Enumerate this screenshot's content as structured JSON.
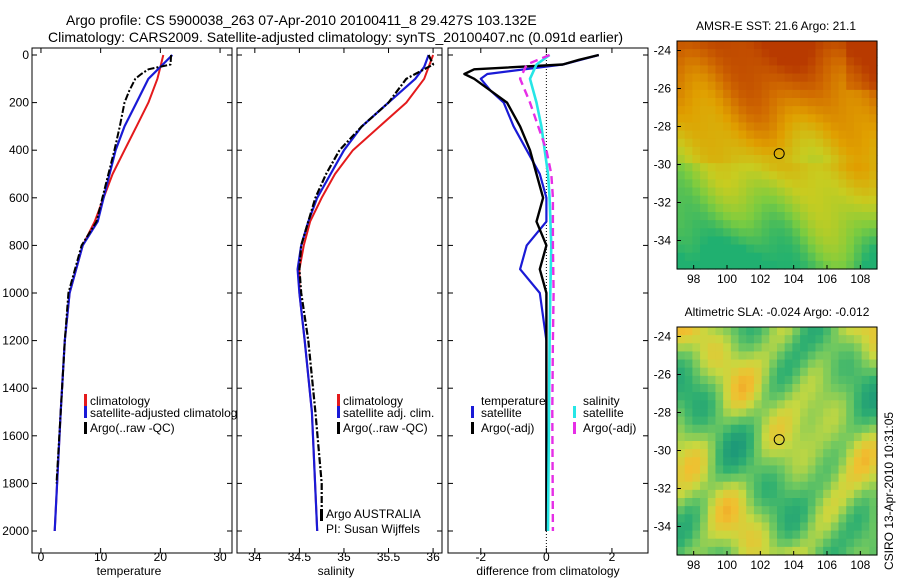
{
  "header": {
    "line1": "Argo profile: CS 5900038_263 07-Apr-2010 20100411_8 29.427S 103.132E",
    "line2": "Climatology: CARS2009. Satellite-adjusted climatology: synTS_20100407.nc (0.091d earlier)"
  },
  "colors": {
    "climatology": "#e41a1c",
    "satellite": "#1a1ad6",
    "argo": "#000000",
    "sal_satellite": "#26e6e6",
    "sal_argo": "#e62ee6"
  },
  "chart_data": [
    {
      "id": "temperature",
      "type": "line",
      "xlabel": "temperature",
      "xlim": [
        -1.5,
        32
      ],
      "xticks": [
        0,
        10,
        20,
        30
      ],
      "ylim": [
        0,
        2050
      ],
      "yticks": [
        0,
        200,
        400,
        600,
        800,
        1000,
        1200,
        1400,
        1600,
        1800,
        2000
      ],
      "y_reversed": true,
      "legend": [
        "climatology",
        "satellite-adjusted climatolog",
        "Argo(..raw -QC)"
      ],
      "series": [
        {
          "name": "climatology",
          "depth": [
            0,
            50,
            100,
            200,
            300,
            400,
            500,
            600,
            700,
            800,
            1000,
            1200,
            1500,
            2000
          ],
          "values": [
            20.5,
            20.0,
            19.5,
            18.0,
            16.0,
            14.0,
            12.0,
            10.5,
            9.0,
            7.0,
            4.8,
            4.0,
            3.3,
            2.3
          ]
        },
        {
          "name": "satellite-adjusted climatolog",
          "depth": [
            0,
            50,
            100,
            200,
            300,
            400,
            500,
            600,
            700,
            800,
            1000,
            1200,
            1500,
            2000
          ],
          "values": [
            22.0,
            20.0,
            18.0,
            16.0,
            14.0,
            12.5,
            11.5,
            10.5,
            9.5,
            7.0,
            4.8,
            4.0,
            3.3,
            2.3
          ]
        },
        {
          "name": "Argo(..raw -QC)",
          "depth": [
            0,
            40,
            60,
            80,
            100,
            150,
            200,
            300,
            400,
            500,
            600,
            700,
            800,
            1000,
            1200,
            1500,
            1800
          ],
          "values": [
            21.8,
            21.7,
            18.0,
            16.8,
            15.8,
            14.8,
            14.0,
            13.2,
            12.3,
            11.3,
            10.3,
            9.3,
            6.8,
            4.6,
            4.0,
            3.3,
            2.6
          ]
        }
      ]
    },
    {
      "id": "salinity",
      "type": "line",
      "xlabel": "salinity",
      "xlim": [
        33.8,
        36.1
      ],
      "xticks": [
        34,
        34.5,
        35,
        35.5,
        36
      ],
      "xtick_labels": [
        "34",
        "34.5",
        "35",
        "35.5",
        "36"
      ],
      "ylim": [
        0,
        2050
      ],
      "y_reversed": true,
      "legend": [
        "climatology",
        "satellite adj. clim.",
        "Argo(..raw -QC)"
      ],
      "note": [
        "Argo AUSTRALIA",
        "PI: Susan Wijffels"
      ],
      "series": [
        {
          "name": "climatology",
          "depth": [
            0,
            100,
            200,
            300,
            400,
            500,
            600,
            700,
            800,
            900,
            1000,
            1200,
            1500,
            2000
          ],
          "values": [
            36.0,
            35.9,
            35.7,
            35.4,
            35.1,
            34.9,
            34.75,
            34.62,
            34.55,
            34.5,
            34.5,
            34.56,
            34.64,
            34.7
          ]
        },
        {
          "name": "satellite adj. clim.",
          "depth": [
            0,
            50,
            100,
            200,
            300,
            400,
            500,
            600,
            700,
            800,
            900,
            1000,
            1200,
            1500,
            2000
          ],
          "values": [
            35.95,
            35.9,
            35.8,
            35.5,
            35.2,
            35.0,
            34.85,
            34.7,
            34.6,
            34.52,
            34.48,
            34.5,
            34.56,
            34.64,
            34.7
          ]
        },
        {
          "name": "Argo(..raw -QC)",
          "depth": [
            0,
            40,
            80,
            100,
            200,
            300,
            400,
            500,
            600,
            700,
            800,
            900,
            1000,
            1200,
            1500,
            1800,
            1950
          ],
          "values": [
            35.95,
            36.0,
            35.8,
            35.7,
            35.5,
            35.2,
            34.95,
            34.8,
            34.68,
            34.6,
            34.52,
            34.5,
            34.52,
            34.6,
            34.68,
            34.75,
            34.75
          ]
        }
      ]
    },
    {
      "id": "difference",
      "type": "line",
      "xlabel": "difference from climatology",
      "xlim": [
        -3,
        3.1
      ],
      "xticks": [
        -2,
        0,
        2
      ],
      "xtick_labels": [
        "-2",
        "0",
        "2"
      ],
      "ylim": [
        0,
        2050
      ],
      "y_reversed": true,
      "legend_temperature": [
        "temperature",
        "satellite",
        "Argo(-adj)"
      ],
      "legend_salinity": [
        "salinity",
        "satellite",
        "Argo(-adj)"
      ],
      "series": [
        {
          "name": "temperature satellite",
          "depth": [
            0,
            40,
            80,
            100,
            150,
            200,
            300,
            400,
            500,
            600,
            700,
            800,
            900,
            1000,
            1200,
            1500,
            2000
          ],
          "values": [
            1.6,
            0.5,
            -1.8,
            -2.0,
            -1.7,
            -1.3,
            -1.0,
            -0.6,
            -0.2,
            0.0,
            0.0,
            -0.6,
            -0.8,
            -0.2,
            0.0,
            0.0,
            0.0
          ]
        },
        {
          "name": "temperature Argo(-adj)",
          "depth": [
            0,
            20,
            40,
            60,
            80,
            100,
            150,
            200,
            300,
            400,
            500,
            600,
            700,
            800,
            900,
            1000,
            1200,
            1500,
            2000
          ],
          "values": [
            1.6,
            1.0,
            0.5,
            -2.2,
            -2.5,
            -2.2,
            -1.7,
            -1.2,
            -0.8,
            -0.5,
            -0.3,
            -0.1,
            -0.3,
            0.0,
            -0.2,
            0.0,
            0.0,
            0.0,
            0.0
          ]
        },
        {
          "name": "salinity satellite",
          "depth": [
            0,
            40,
            100,
            200,
            300,
            400,
            500,
            600,
            800,
            1000,
            1200,
            1500,
            2000
          ],
          "values": [
            0.1,
            -0.3,
            -0.5,
            -0.3,
            -0.15,
            -0.05,
            0.05,
            0.1,
            0.15,
            0.12,
            0.1,
            0.08,
            0.05
          ]
        },
        {
          "name": "salinity Argo(-adj)",
          "depth": [
            0,
            40,
            100,
            200,
            300,
            400,
            500,
            600,
            800,
            1000,
            1200,
            1500,
            2000
          ],
          "values": [
            0.1,
            -0.6,
            -0.8,
            -0.5,
            -0.25,
            0.0,
            0.15,
            0.2,
            0.2,
            0.22,
            0.2,
            0.18,
            0.2
          ]
        }
      ]
    },
    {
      "id": "sst_map",
      "type": "heatmap",
      "title": "AMSR-E SST: 21.6  Argo: 21.1",
      "xlim": [
        97,
        109
      ],
      "ylim": [
        -35.5,
        -23.5
      ],
      "xticks": [
        98,
        100,
        102,
        104,
        106,
        108
      ],
      "yticks": [
        -24,
        -26,
        -28,
        -30,
        -32,
        -34
      ],
      "marker": {
        "lon": 103.132,
        "lat": -29.427
      },
      "colors": [
        "#b83a00",
        "#d06a00",
        "#e0a000",
        "#c8cc20",
        "#7ccc40",
        "#20b070"
      ]
    },
    {
      "id": "sla_map",
      "type": "heatmap",
      "title": "Altimetric SLA: -0.024  Argo: -0.012",
      "xlim": [
        97,
        109
      ],
      "ylim": [
        -35.5,
        -23.5
      ],
      "xticks": [
        98,
        100,
        102,
        104,
        106,
        108
      ],
      "yticks": [
        -24,
        -26,
        -28,
        -30,
        -32,
        -34
      ],
      "marker": {
        "lon": 103.132,
        "lat": -29.427
      },
      "colors": [
        "#1e9a78",
        "#30b070",
        "#70c860",
        "#c8d840",
        "#f0c030",
        "#f09020"
      ]
    }
  ],
  "footer_vertical": "CSIRO 13-Apr-2010 10:31:05"
}
